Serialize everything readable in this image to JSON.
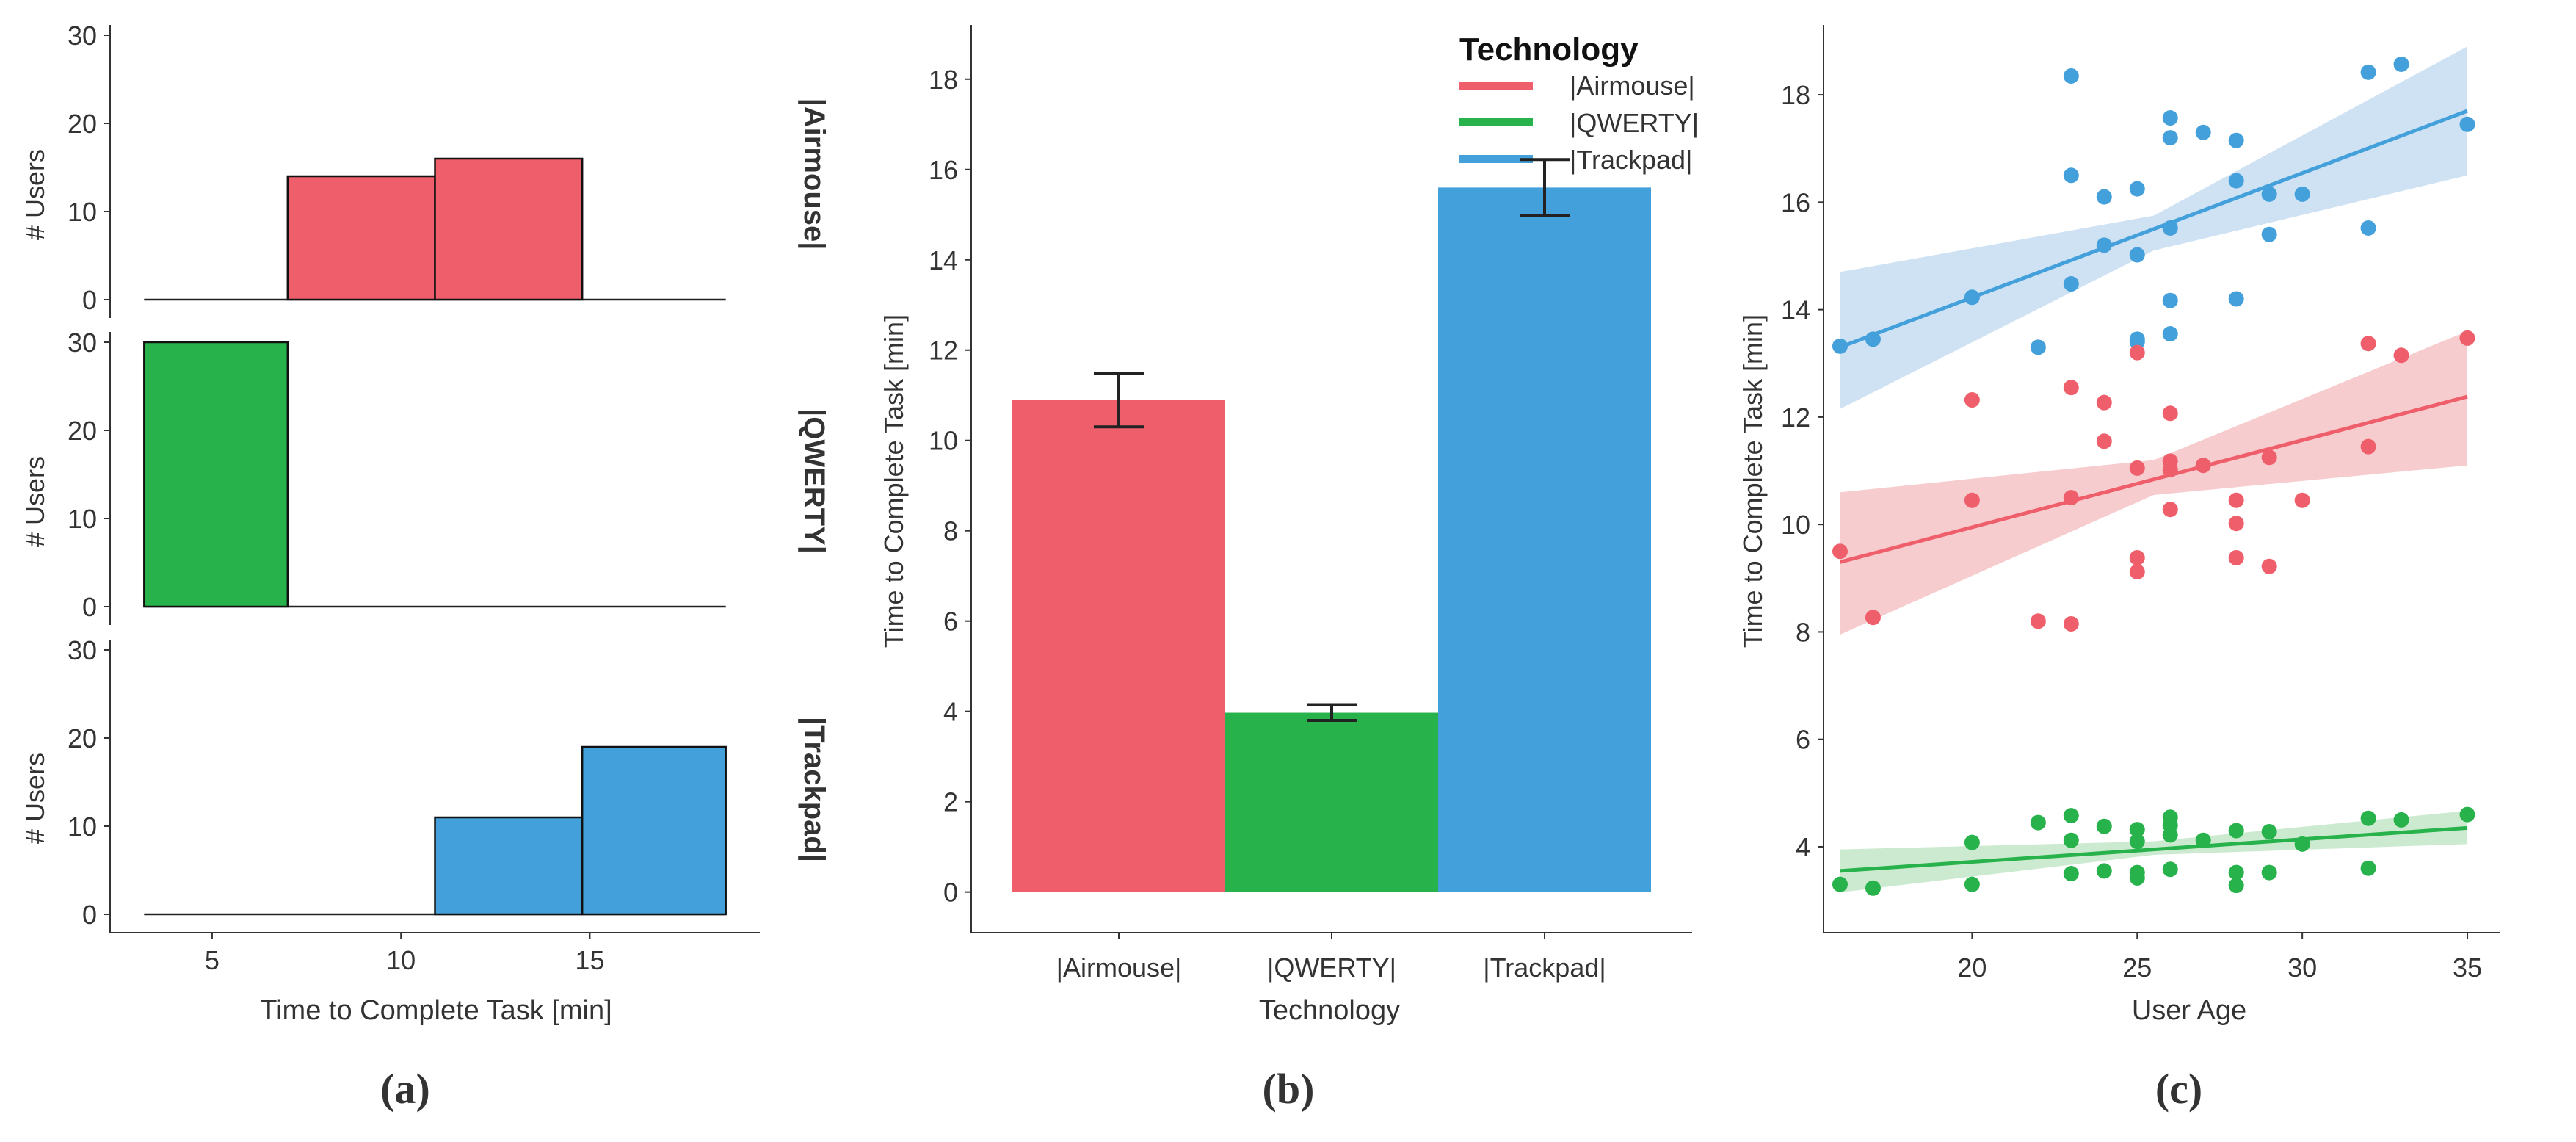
{
  "colors": {
    "airmouse": "#ef5f6b",
    "qwerty": "#28b24b",
    "trackpad": "#44a0da",
    "airmouse_band": "#f6c3c6",
    "qwerty_band": "#c3e6c7",
    "trackpad_band": "#c6ddf2",
    "axis": "#333333",
    "errorbar": "#222222"
  },
  "panel_labels": {
    "a": "(a)",
    "b": "(b)",
    "c": "(c)"
  },
  "chart_data": [
    {
      "id": "a",
      "type": "bar",
      "subtype": "histogram-facets",
      "xlabel": "Time to Complete Task [min]",
      "ylabel": "# Users",
      "xticks": [
        5,
        10,
        15
      ],
      "yticks": [
        0,
        10,
        20,
        30
      ],
      "xlim": [
        2.3,
        19.5
      ],
      "ylim": [
        -1.5,
        31
      ],
      "baseline_range": [
        3.2,
        18.6
      ],
      "facets": [
        {
          "label": "|Airmouse|",
          "color_key": "airmouse",
          "bins": [
            {
              "x0": 7.0,
              "x1": 10.9,
              "count": 14
            },
            {
              "x0": 10.9,
              "x1": 14.8,
              "count": 16
            }
          ]
        },
        {
          "label": "|QWERTY|",
          "color_key": "qwerty",
          "bins": [
            {
              "x0": 3.2,
              "x1": 7.0,
              "count": 30
            }
          ]
        },
        {
          "label": "|Trackpad|",
          "color_key": "trackpad",
          "bins": [
            {
              "x0": 10.9,
              "x1": 14.8,
              "count": 11
            },
            {
              "x0": 14.8,
              "x1": 18.6,
              "count": 19
            }
          ]
        }
      ]
    },
    {
      "id": "b",
      "type": "bar",
      "title": "",
      "xlabel": "Technology",
      "ylabel": "Time to Complete Task [min]",
      "ylim": [
        -0.9,
        19.2
      ],
      "yticks": [
        0,
        2,
        4,
        6,
        8,
        10,
        12,
        14,
        16,
        18
      ],
      "categories": [
        "|Airmouse|",
        "|QWERTY|",
        "|Trackpad|"
      ],
      "values": [
        10.9,
        3.97,
        15.6
      ],
      "error_low": [
        10.3,
        3.8,
        14.98
      ],
      "error_high": [
        11.48,
        4.15,
        16.22
      ],
      "color_keys": [
        "airmouse",
        "qwerty",
        "trackpad"
      ],
      "legend": {
        "title": "Technology",
        "position": "top-right",
        "entries": [
          "|Airmouse|",
          "|QWERTY|",
          "|Trackpad|"
        ]
      }
    },
    {
      "id": "c",
      "type": "scatter",
      "xlabel": "User Age",
      "ylabel": "Time to Complete Task [min]",
      "xlim": [
        15.5,
        36.0
      ],
      "ylim": [
        2.4,
        19.3
      ],
      "xticks": [
        20,
        25,
        30,
        35
      ],
      "yticks": [
        4,
        6,
        8,
        10,
        12,
        14,
        16,
        18
      ],
      "series": [
        {
          "name": "|Trackpad|",
          "color_key": "trackpad",
          "band_key": "trackpad_band",
          "fit": {
            "x0": 16,
            "y0": 13.3,
            "x1": 35,
            "y1": 17.7
          },
          "band_lower": [
            [
              16,
              12.15
            ],
            [
              25.5,
              15.1
            ],
            [
              35,
              16.5
            ]
          ],
          "band_upper": [
            [
              16,
              14.7
            ],
            [
              25.5,
              15.75
            ],
            [
              35,
              18.9
            ]
          ],
          "points": [
            [
              16,
              13.32
            ],
            [
              17,
              13.45
            ],
            [
              20,
              14.23
            ],
            [
              22,
              13.3
            ],
            [
              23,
              18.35
            ],
            [
              23,
              16.5
            ],
            [
              23,
              14.48
            ],
            [
              24,
              16.1
            ],
            [
              24,
              15.2
            ],
            [
              25,
              16.25
            ],
            [
              25,
              15.02
            ],
            [
              25,
              13.45
            ],
            [
              25,
              13.4
            ],
            [
              26,
              17.57
            ],
            [
              26,
              17.2
            ],
            [
              26,
              15.52
            ],
            [
              26,
              14.17
            ],
            [
              26,
              13.55
            ],
            [
              27,
              17.3
            ],
            [
              28,
              17.15
            ],
            [
              28,
              16.4
            ],
            [
              28,
              14.2
            ],
            [
              29,
              16.15
            ],
            [
              29,
              15.4
            ],
            [
              30,
              16.15
            ],
            [
              32,
              18.42
            ],
            [
              32,
              15.52
            ],
            [
              33,
              18.57
            ],
            [
              35,
              17.45
            ]
          ]
        },
        {
          "name": "|Airmouse|",
          "color_key": "airmouse",
          "band_key": "airmouse_band",
          "fit": {
            "x0": 16,
            "y0": 9.3,
            "x1": 35,
            "y1": 12.38
          },
          "band_lower": [
            [
              16,
              7.95
            ],
            [
              25.5,
              10.55
            ],
            [
              35,
              11.1
            ]
          ],
          "band_upper": [
            [
              16,
              10.6
            ],
            [
              25.5,
              11.2
            ],
            [
              35,
              13.6
            ]
          ],
          "points": [
            [
              16,
              9.5
            ],
            [
              17,
              8.27
            ],
            [
              20,
              12.32
            ],
            [
              20,
              10.45
            ],
            [
              22,
              8.2
            ],
            [
              23,
              12.55
            ],
            [
              23,
              10.5
            ],
            [
              23,
              8.15
            ],
            [
              24,
              12.27
            ],
            [
              24,
              11.55
            ],
            [
              25,
              13.2
            ],
            [
              25,
              11.05
            ],
            [
              25,
              9.38
            ],
            [
              25,
              9.12
            ],
            [
              26,
              12.07
            ],
            [
              26,
              11.18
            ],
            [
              26,
              11.02
            ],
            [
              26,
              10.28
            ],
            [
              27,
              11.1
            ],
            [
              28,
              10.45
            ],
            [
              28,
              10.02
            ],
            [
              28,
              9.38
            ],
            [
              29,
              11.25
            ],
            [
              29,
              9.22
            ],
            [
              30,
              10.45
            ],
            [
              32,
              13.37
            ],
            [
              32,
              11.45
            ],
            [
              33,
              13.15
            ],
            [
              35,
              13.47
            ]
          ]
        },
        {
          "name": "|QWERTY|",
          "color_key": "qwerty",
          "band_key": "qwerty_band",
          "fit": {
            "x0": 16,
            "y0": 3.55,
            "x1": 35,
            "y1": 4.35
          },
          "band_lower": [
            [
              16,
              3.15
            ],
            [
              25.5,
              3.85
            ],
            [
              35,
              4.05
            ]
          ],
          "band_upper": [
            [
              16,
              3.95
            ],
            [
              25.5,
              4.1
            ],
            [
              35,
              4.67
            ]
          ],
          "points": [
            [
              16,
              3.3
            ],
            [
              17,
              3.23
            ],
            [
              20,
              4.08
            ],
            [
              20,
              3.3
            ],
            [
              22,
              4.45
            ],
            [
              23,
              4.58
            ],
            [
              23,
              4.12
            ],
            [
              23,
              3.5
            ],
            [
              24,
              4.38
            ],
            [
              24,
              3.55
            ],
            [
              25,
              4.32
            ],
            [
              25,
              4.1
            ],
            [
              25,
              3.52
            ],
            [
              25,
              3.42
            ],
            [
              26,
              4.55
            ],
            [
              26,
              4.4
            ],
            [
              26,
              4.22
            ],
            [
              26,
              3.58
            ],
            [
              27,
              4.12
            ],
            [
              28,
              4.3
            ],
            [
              28,
              3.52
            ],
            [
              28,
              3.28
            ],
            [
              29,
              4.28
            ],
            [
              29,
              3.52
            ],
            [
              30,
              4.05
            ],
            [
              32,
              4.53
            ],
            [
              32,
              3.6
            ],
            [
              33,
              4.5
            ],
            [
              35,
              4.6
            ]
          ]
        }
      ]
    }
  ]
}
